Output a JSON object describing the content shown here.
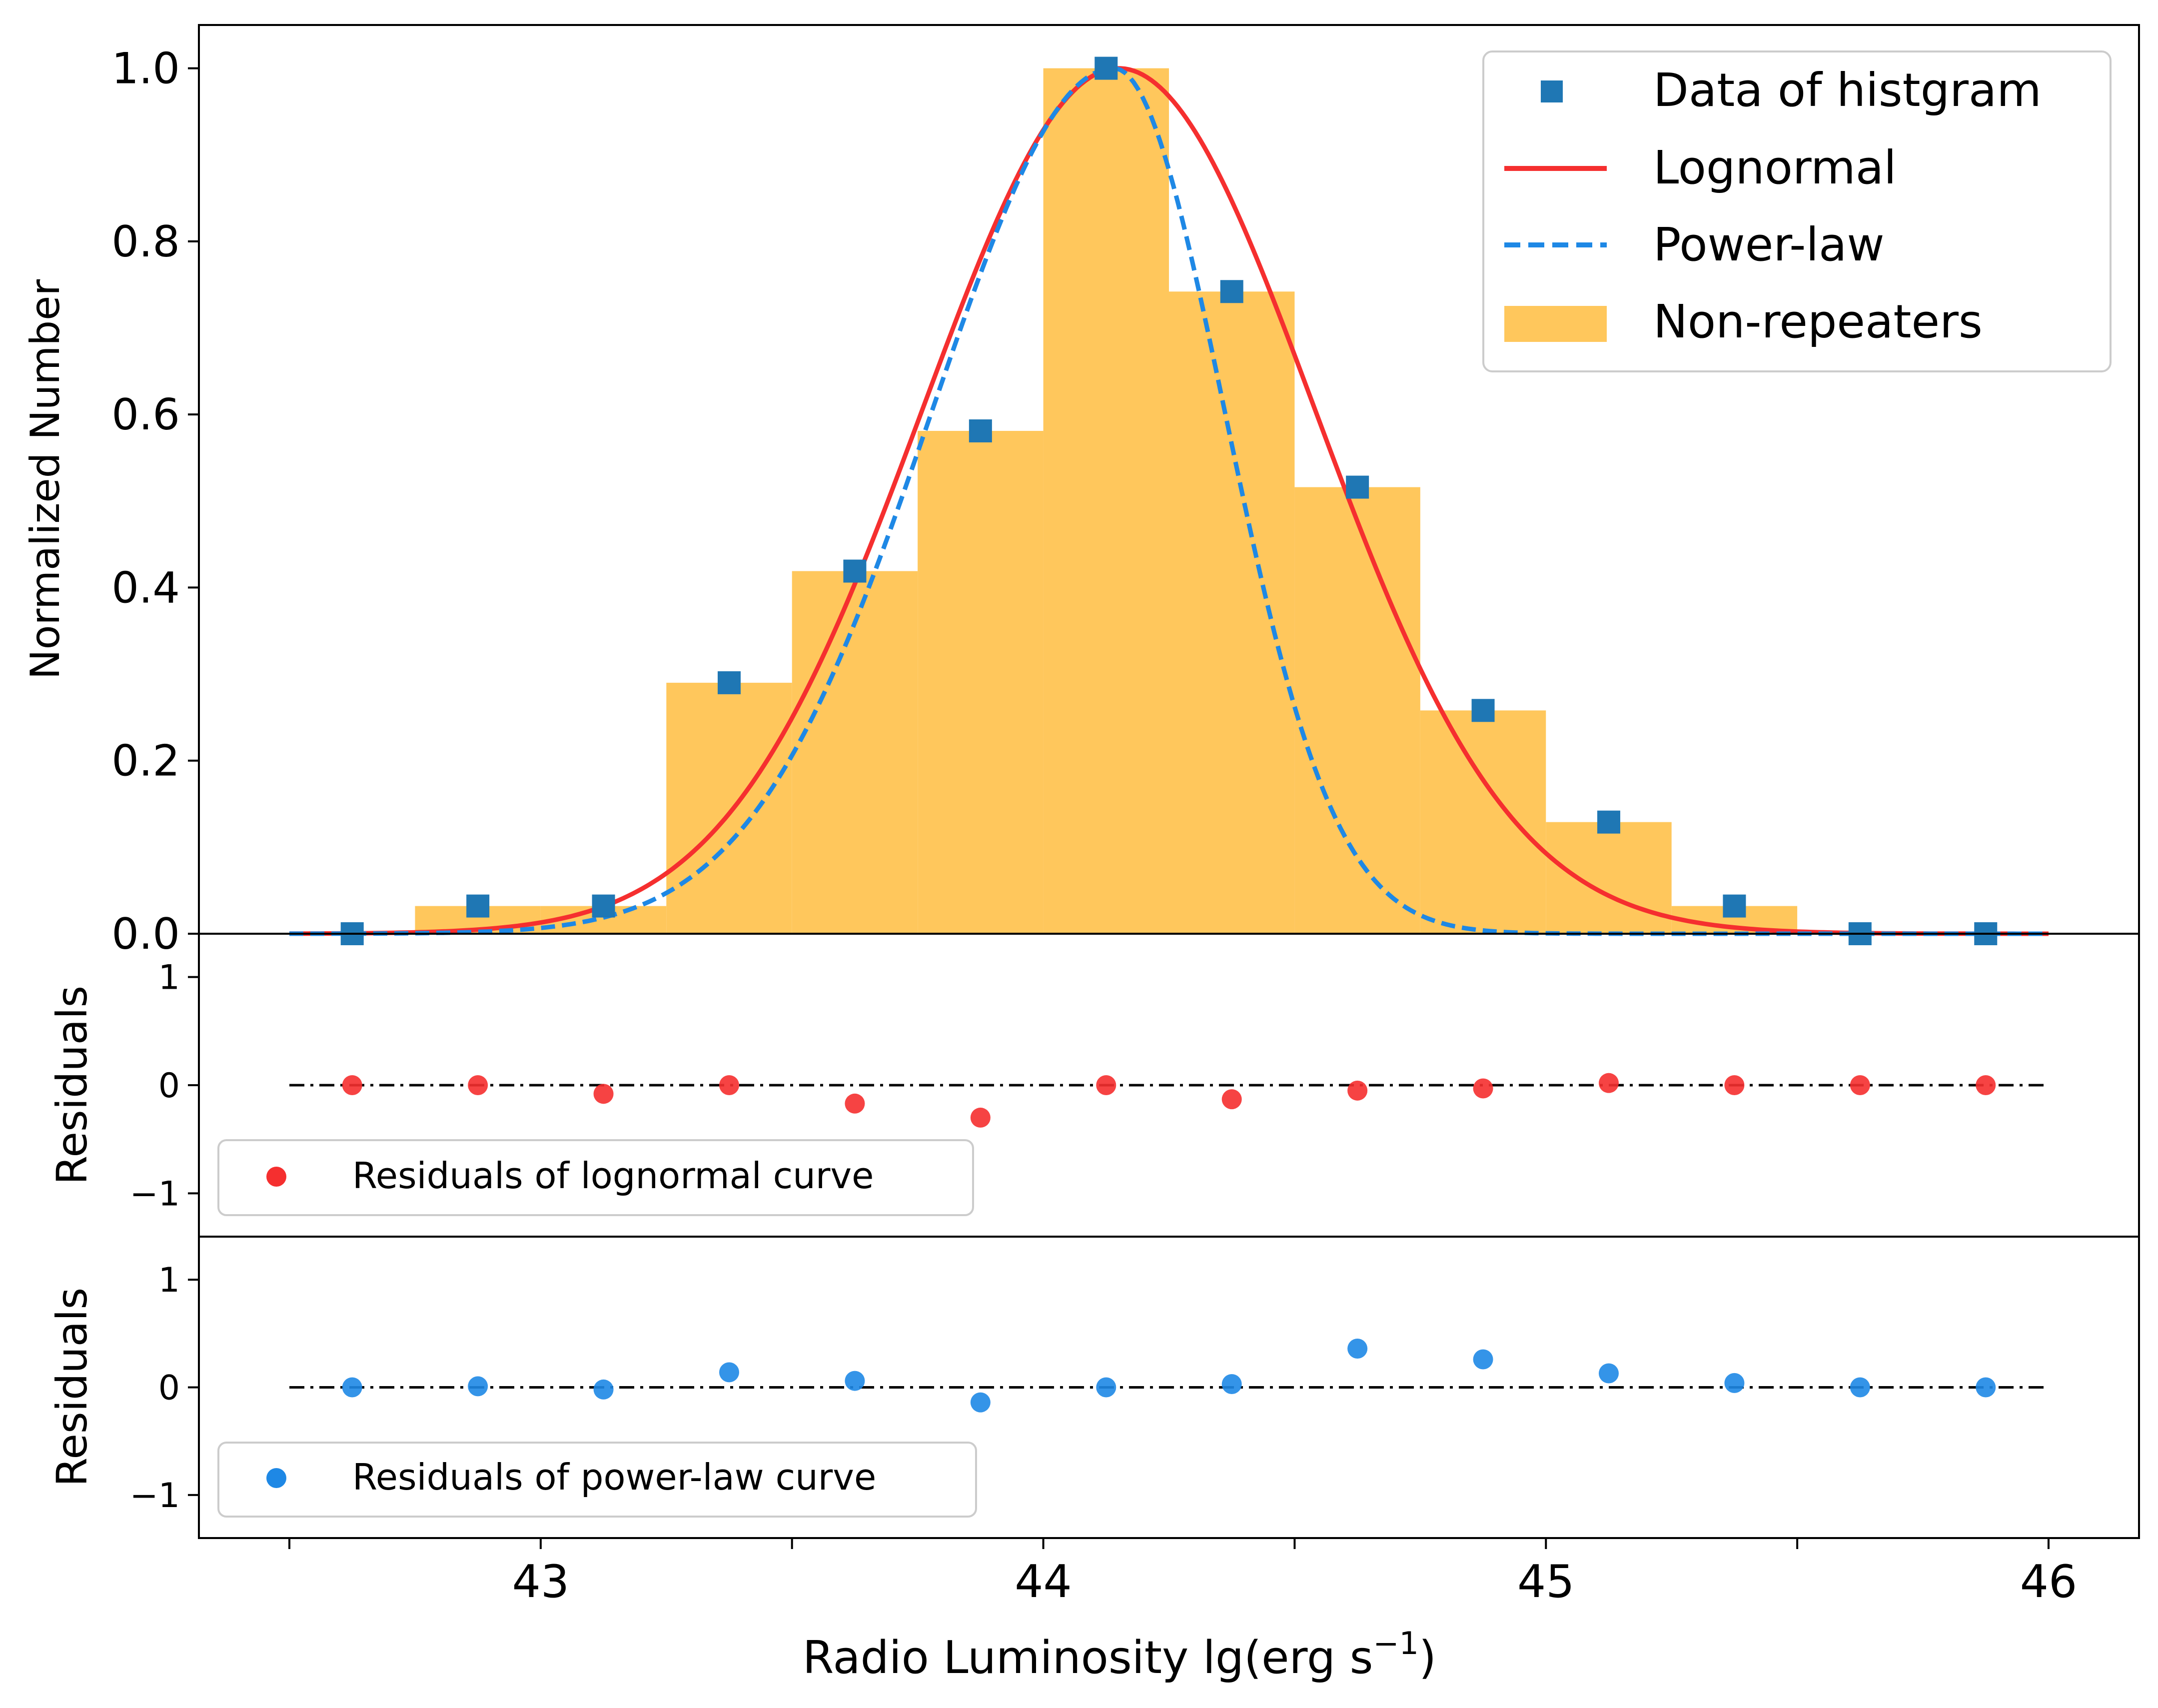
{
  "colors": {
    "hist": "#ffc75c",
    "data_marker": "#1f77b4",
    "lognormal": "#f52f2f",
    "powerlaw": "#1e88e5",
    "resid_lognormal": "#f52f2f",
    "resid_powerlaw": "#1e88e5",
    "zero_line": "#000000"
  },
  "chart_data": [
    {
      "panel": "main",
      "type": "bar",
      "ylabel": "Normalized Number",
      "ylim": [
        0,
        1.05
      ],
      "xlim": [
        42.32,
        46.18
      ],
      "yticks": [
        "0.0",
        "0.2",
        "0.4",
        "0.6",
        "0.8",
        "1.0"
      ],
      "ytick_values": [
        0,
        0.2,
        0.4,
        0.6,
        0.8,
        1.0
      ],
      "legend_position": "top-right",
      "legend": {
        "data": "Data of histgram",
        "lognormal": "Lognormal",
        "powerlaw": "Power-law",
        "hist": "Non-repeaters"
      },
      "histogram": {
        "name": "Non-repeaters",
        "bin_edges": [
          42.5,
          42.75,
          43.0,
          43.25,
          43.5,
          43.75,
          44.0,
          44.25,
          44.5,
          44.75,
          45.0,
          45.25,
          45.5,
          45.75,
          46.0
        ],
        "values": [
          0.0,
          0.032,
          0.032,
          0.29,
          0.419,
          0.581,
          1.0,
          0.742,
          0.516,
          0.258,
          0.129,
          0.032,
          0.0,
          0.0
        ]
      },
      "data_points": {
        "name": "Data of histgram",
        "x": [
          42.625,
          42.875,
          43.125,
          43.375,
          43.625,
          43.875,
          44.125,
          44.375,
          44.625,
          44.875,
          45.125,
          45.375,
          45.625,
          45.875
        ],
        "y": [
          0.0,
          0.032,
          0.032,
          0.29,
          0.419,
          0.581,
          1.0,
          0.742,
          0.516,
          0.258,
          0.129,
          0.032,
          0.0,
          0.0
        ]
      },
      "lognormal_curve": {
        "name": "Lognormal",
        "peak_x": 44.15,
        "sigma": 0.39,
        "amplitude": 1.0,
        "x_range": [
          42.5,
          46.0
        ]
      },
      "powerlaw_curve": {
        "name": "Power-law",
        "peak_x": 44.14,
        "sigma_left": 0.36,
        "sigma_right": 0.22,
        "amplitude": 1.0,
        "x_range": [
          42.5,
          46.0
        ]
      }
    },
    {
      "panel": "residuals_lognormal",
      "type": "scatter",
      "ylabel": "Residuals",
      "ylim": [
        -1.4,
        1.4
      ],
      "yticks": [
        "−1",
        "0",
        "1"
      ],
      "ytick_values": [
        -1,
        0,
        1
      ],
      "legend_position": "lower-left",
      "legend_label": "Residuals of lognormal curve",
      "x": [
        42.625,
        42.875,
        43.125,
        43.375,
        43.625,
        43.875,
        44.125,
        44.375,
        44.625,
        44.875,
        45.125,
        45.375,
        45.625,
        45.875
      ],
      "y": [
        0.0,
        0.0,
        -0.08,
        0.0,
        -0.17,
        -0.3,
        0.0,
        -0.13,
        -0.05,
        -0.03,
        0.02,
        0.0,
        0.0,
        0.0
      ]
    },
    {
      "panel": "residuals_powerlaw",
      "type": "scatter",
      "ylabel": "Residuals",
      "ylim": [
        -1.4,
        1.4
      ],
      "yticks": [
        "−1",
        "0",
        "1"
      ],
      "ytick_values": [
        -1,
        0,
        1
      ],
      "legend_position": "lower-left",
      "legend_label": "Residuals of power-law curve",
      "xlabel_main": "Radio Luminosity lg(erg s",
      "xlabel_sup": "−1",
      "xlabel_end": ")",
      "xticks": [
        "43",
        "44",
        "45",
        "46"
      ],
      "xtick_values": [
        43,
        44,
        45,
        46
      ],
      "minor_xtick_values": [
        42.5,
        43.5,
        44.5,
        45.5
      ],
      "x": [
        42.625,
        42.875,
        43.125,
        43.375,
        43.625,
        43.875,
        44.125,
        44.375,
        44.625,
        44.875,
        45.125,
        45.375,
        45.625,
        45.875
      ],
      "y": [
        0.0,
        0.01,
        -0.02,
        0.14,
        0.06,
        -0.14,
        0.0,
        0.03,
        0.36,
        0.26,
        0.13,
        0.04,
        0.0,
        0.0
      ]
    }
  ]
}
